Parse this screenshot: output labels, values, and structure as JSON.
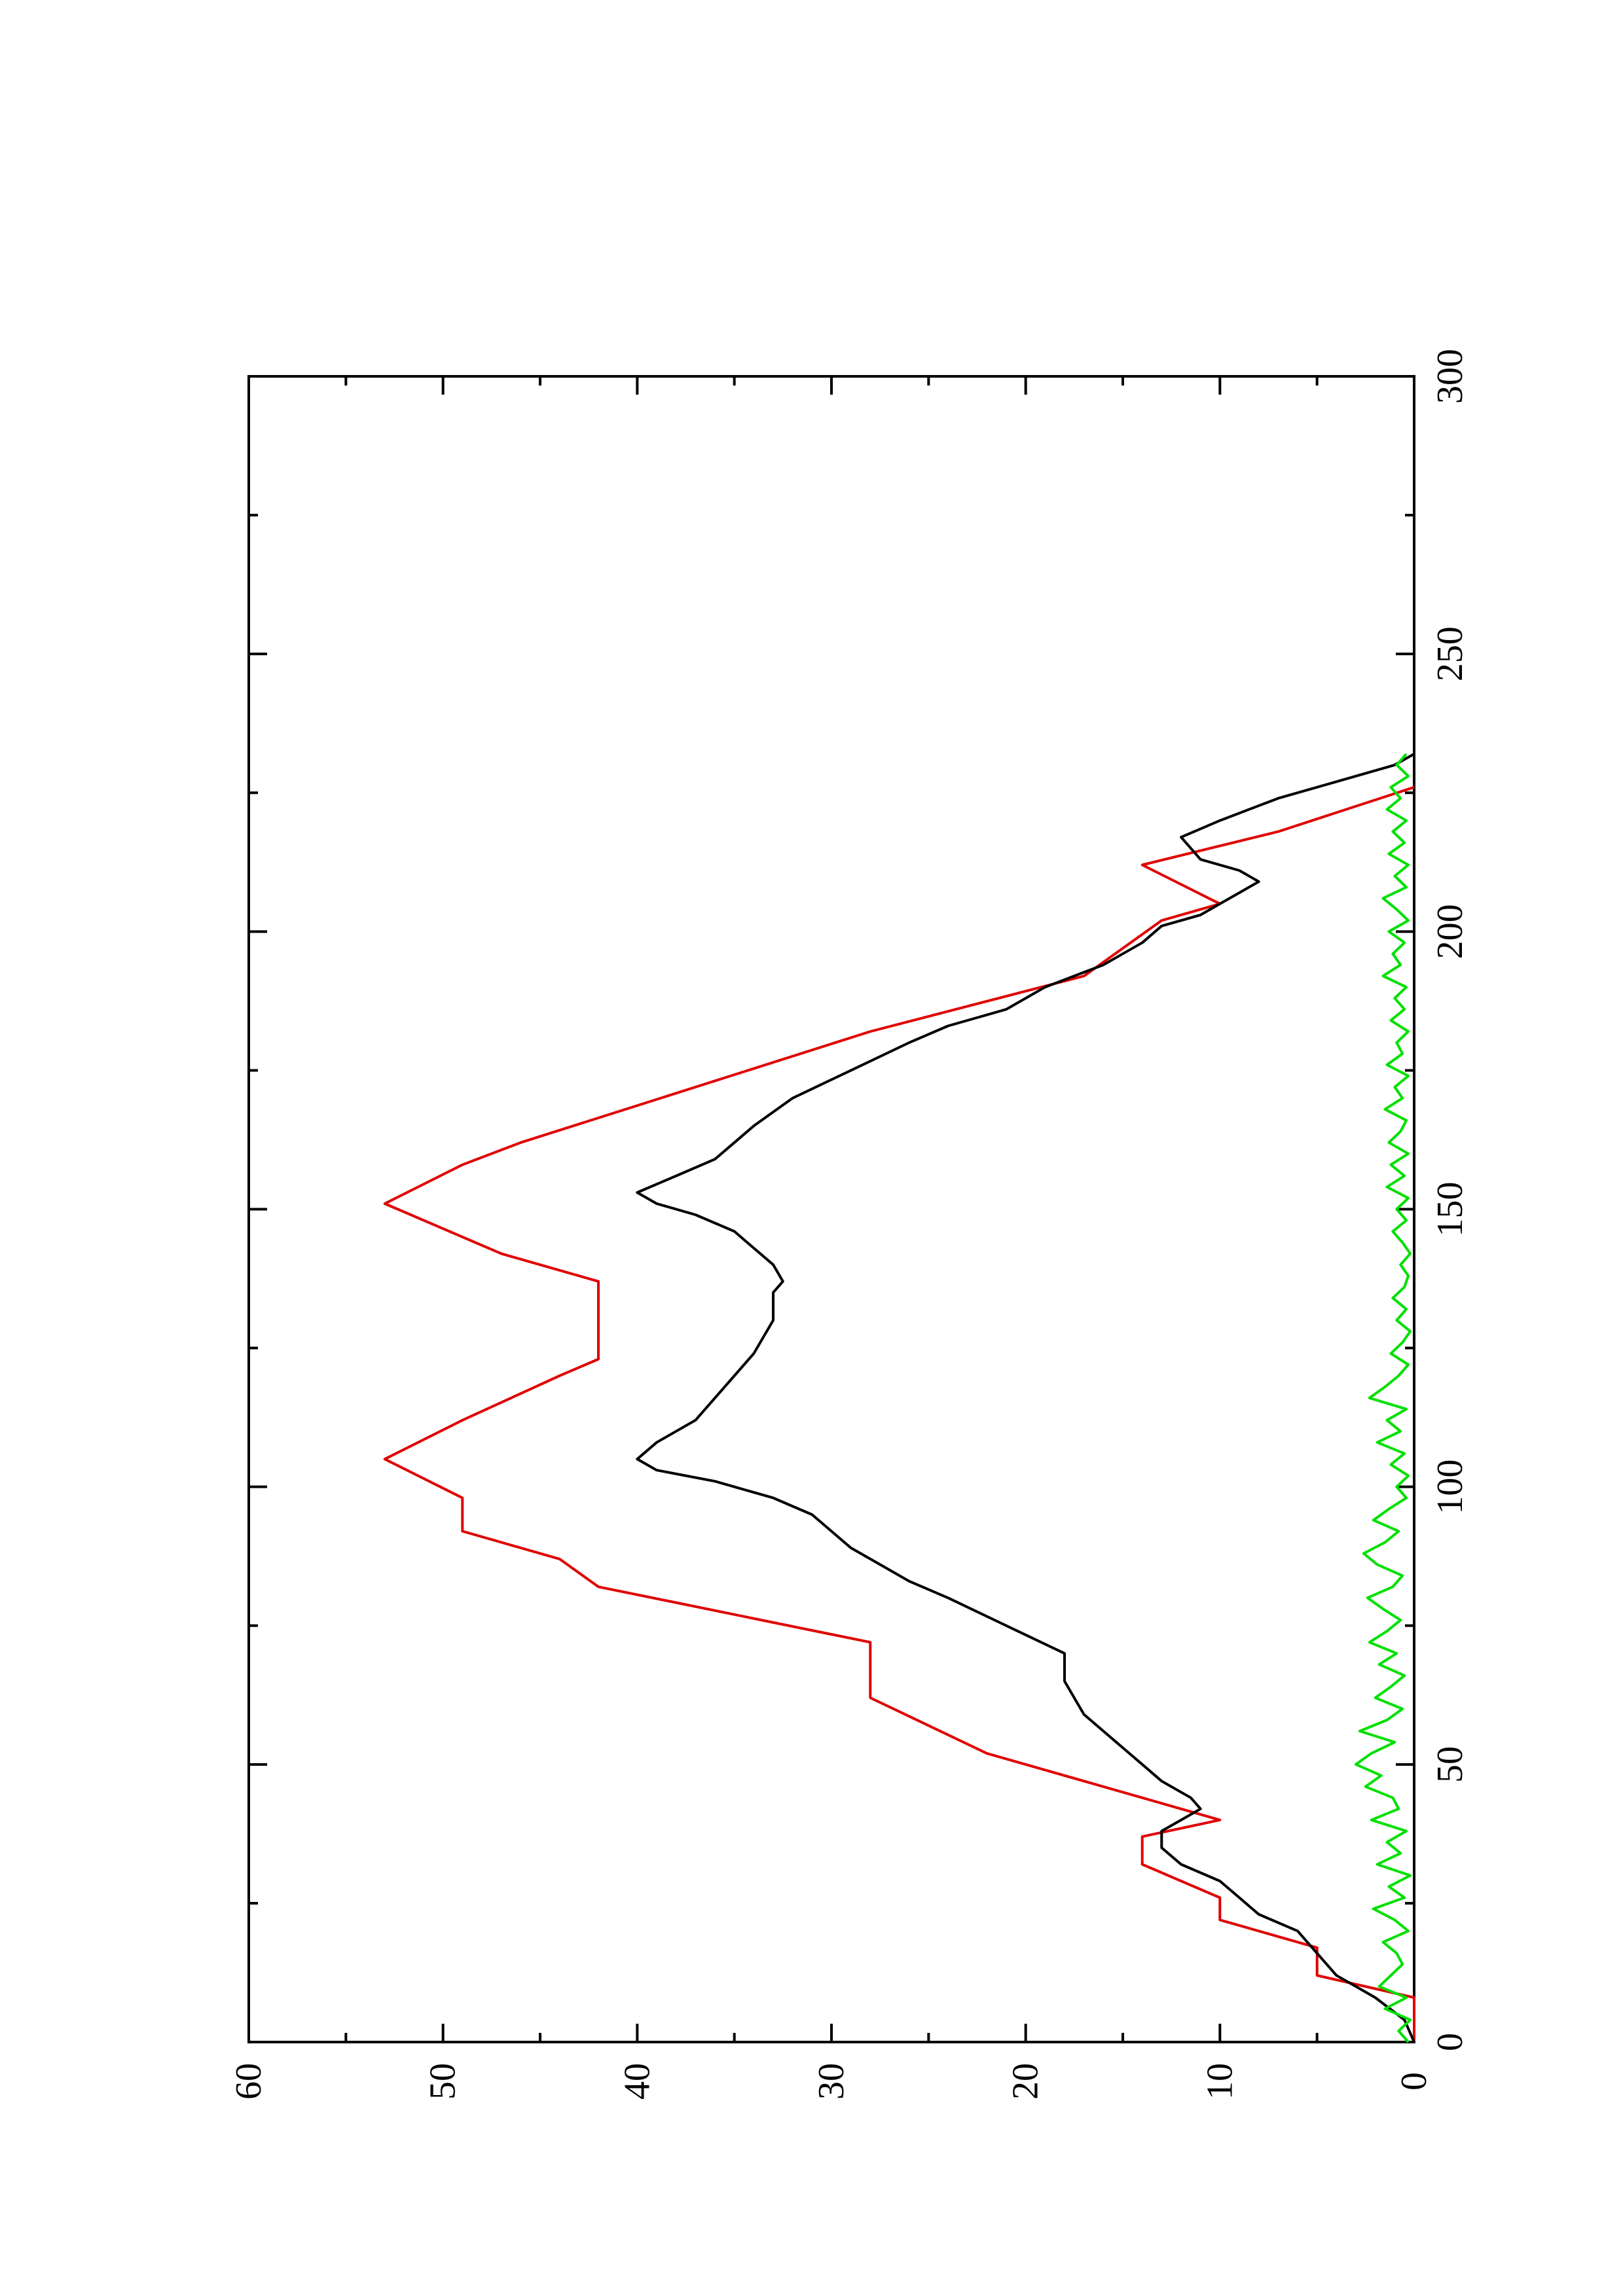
{
  "chart_data": {
    "type": "line",
    "title": "",
    "xlabel": "",
    "ylabel": "",
    "xlim": [
      0,
      300
    ],
    "ylim": [
      0,
      60
    ],
    "orientation": "rotated 90° counter-clockwise (x axis vertical, increasing upward; y axis horizontal, increasing leftward)",
    "grid": false,
    "legend": "none",
    "x_ticks": [
      0,
      50,
      100,
      150,
      200,
      250,
      300
    ],
    "y_ticks": [
      0,
      10,
      20,
      30,
      40,
      50,
      60
    ],
    "series": [
      {
        "color": "#e00000",
        "x": [
          0,
          8,
          12,
          17,
          22,
          26,
          32,
          37,
          40,
          47,
          52,
          57,
          62,
          72,
          82,
          87,
          92,
          98,
          105,
          112,
          120,
          123,
          137,
          142,
          151,
          158,
          162,
          172,
          182,
          192,
          202,
          205,
          212,
          218,
          226
        ],
        "y": [
          0,
          0,
          5,
          5,
          10,
          10,
          14,
          14,
          10,
          17,
          22,
          25,
          28,
          28,
          42,
          44,
          49,
          49,
          53,
          49,
          44,
          42,
          42,
          47,
          53,
          49,
          46,
          37,
          28,
          17,
          13,
          10,
          14,
          7,
          0
        ]
      },
      {
        "color": "#000000",
        "x": [
          0,
          4,
          8,
          12,
          16,
          18,
          20,
          23,
          26,
          29,
          32,
          35,
          38,
          40,
          42,
          44,
          47,
          50,
          53,
          56,
          59,
          62,
          65,
          70,
          75,
          80,
          83,
          86,
          89,
          92,
          95,
          98,
          101,
          103,
          105,
          108,
          112,
          116,
          120,
          124,
          130,
          135,
          137,
          140,
          143,
          146,
          149,
          151,
          153,
          156,
          159,
          162,
          165,
          170,
          175,
          180,
          183,
          186,
          190,
          194,
          198,
          201,
          203,
          205,
          207,
          209,
          211,
          213,
          217,
          220,
          224,
          227,
          230,
          232
        ],
        "y": [
          0,
          0.5,
          2,
          4,
          5,
          5.5,
          6,
          8,
          9,
          10,
          12,
          13,
          13,
          12,
          11,
          11.5,
          13,
          14,
          15,
          16,
          17,
          17.5,
          18,
          18,
          21,
          24,
          26,
          27.5,
          29,
          30,
          31,
          33,
          36,
          39,
          40,
          39,
          37,
          36,
          35,
          34,
          33,
          33,
          32.5,
          33,
          34,
          35,
          37,
          39,
          40,
          38,
          36,
          35,
          34,
          32,
          29,
          26,
          24,
          21,
          19,
          16,
          14,
          13,
          11,
          10,
          9,
          8,
          9,
          11,
          12,
          10,
          7,
          4,
          1,
          0
        ]
      },
      {
        "color": "#00e000",
        "x": [
          0,
          2,
          4,
          6,
          8,
          10,
          12,
          14,
          16,
          18,
          20,
          22,
          24,
          26,
          28,
          30,
          32,
          34,
          36,
          38,
          40,
          42,
          44,
          46,
          48,
          50,
          52,
          54,
          56,
          58,
          60,
          62,
          64,
          66,
          68,
          70,
          72,
          74,
          76,
          78,
          80,
          82,
          84,
          86,
          88,
          90,
          92,
          94,
          96,
          98,
          100,
          102,
          104,
          106,
          108,
          110,
          112,
          114,
          116,
          118,
          120,
          122,
          124,
          126,
          128,
          130,
          132,
          134,
          136,
          138,
          140,
          142,
          144,
          146,
          148,
          150,
          152,
          154,
          156,
          158,
          160,
          162,
          164,
          166,
          168,
          170,
          172,
          174,
          176,
          178,
          180,
          182,
          184,
          186,
          188,
          190,
          192,
          194,
          196,
          198,
          200,
          202,
          204,
          206,
          208,
          210,
          212,
          214,
          216,
          218,
          220,
          222,
          224,
          226,
          228,
          230,
          232
        ],
        "y": [
          0.3,
          0.8,
          0.2,
          1.5,
          0.4,
          1.8,
          1.2,
          0.6,
          0.9,
          1.6,
          0.3,
          1.0,
          2.1,
          0.5,
          1.3,
          0.2,
          1.9,
          0.7,
          1.4,
          0.4,
          2.2,
          0.8,
          1.1,
          2.5,
          1.7,
          3.0,
          2.2,
          1.0,
          2.8,
          1.4,
          0.6,
          2.0,
          1.2,
          0.5,
          1.8,
          0.9,
          2.3,
          1.4,
          0.7,
          1.6,
          2.4,
          1.1,
          0.6,
          1.9,
          2.6,
          1.5,
          0.8,
          2.1,
          1.3,
          0.4,
          0.9,
          0.3,
          1.2,
          0.5,
          1.9,
          0.7,
          1.4,
          0.4,
          2.3,
          1.5,
          0.8,
          0.3,
          1.2,
          0.6,
          0.2,
          0.9,
          0.4,
          1.1,
          0.5,
          0.3,
          0.7,
          0.2,
          0.6,
          1.1,
          0.4,
          0.9,
          0.3,
          1.4,
          0.5,
          1.2,
          0.3,
          1.3,
          0.7,
          0.4,
          1.5,
          0.6,
          1.0,
          0.3,
          1.4,
          0.6,
          0.9,
          0.3,
          1.2,
          0.5,
          1.0,
          0.4,
          1.6,
          0.7,
          1.1,
          0.5,
          1.3,
          0.3,
          0.9,
          1.6,
          0.4,
          1.0,
          0.3,
          1.3,
          0.5,
          1.1,
          0.4,
          1.4,
          0.7,
          1.2,
          0.3,
          0.9,
          0.4
        ]
      }
    ]
  }
}
